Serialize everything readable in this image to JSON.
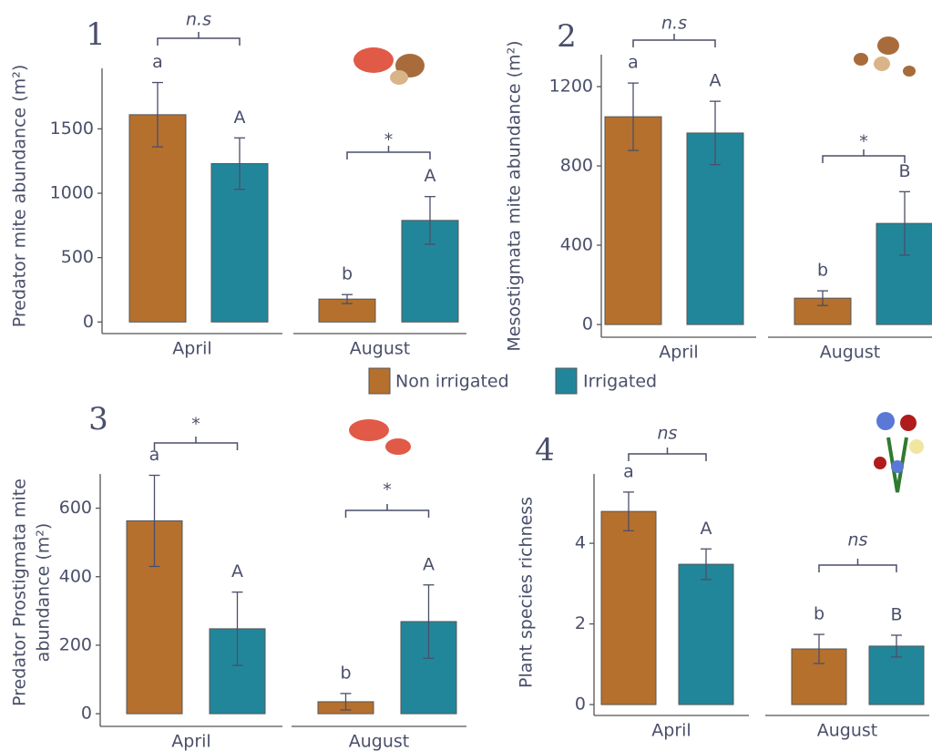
{
  "legend": [
    {
      "name": "Non irrigated",
      "color": "#b5702e"
    },
    {
      "name": "Irrigated",
      "color": "#22869a"
    }
  ],
  "chart_data": [
    {
      "type": "bar",
      "panel": "1",
      "ylabel": "Predator mite abundance (m²)",
      "categories": [
        "April",
        "August"
      ],
      "series": [
        {
          "values": [
            1610,
            178
          ],
          "errors": [
            250,
            35
          ],
          "letters": [
            "a",
            "b"
          ]
        },
        {
          "values": [
            1230,
            789
          ],
          "errors": [
            200,
            185
          ],
          "letters": [
            "A",
            "A"
          ]
        }
      ],
      "significance": [
        "n.s",
        "*"
      ],
      "ylim": [
        -90,
        1970
      ],
      "yticks": [
        0,
        500,
        1000,
        1500
      ]
    },
    {
      "type": "bar",
      "panel": "2",
      "ylabel": "Mesostigmata mite abundance (m²)",
      "categories": [
        "April",
        "August"
      ],
      "series": [
        {
          "values": [
            1048,
            133
          ],
          "errors": [
            170,
            37
          ],
          "letters": [
            "a",
            "b"
          ]
        },
        {
          "values": [
            966,
            510
          ],
          "errors": [
            160,
            160
          ],
          "letters": [
            "A",
            "B"
          ]
        }
      ],
      "significance": [
        "n.s",
        "*"
      ],
      "ylim": [
        -64,
        1361
      ],
      "yticks": [
        0,
        400,
        800,
        1200
      ]
    },
    {
      "type": "bar",
      "panel": "3",
      "ylabel": [
        "Predator Prostigmata mite",
        "abundance (m²)"
      ],
      "categories": [
        "April",
        "August"
      ],
      "series": [
        {
          "values": [
            563,
            35
          ],
          "errors": [
            133,
            24
          ],
          "letters": [
            "a",
            "b"
          ]
        },
        {
          "values": [
            248,
            269
          ],
          "errors": [
            107,
            107
          ],
          "letters": [
            "A",
            "A"
          ]
        }
      ],
      "significance": [
        "*",
        "*"
      ],
      "ylim": [
        -37,
        700
      ],
      "yticks": [
        0,
        200,
        400,
        600
      ]
    },
    {
      "type": "bar",
      "panel": "4",
      "ylabel": "Plant species richness",
      "categories": [
        "April",
        "August"
      ],
      "series": [
        {
          "values": [
            4.79,
            1.38
          ],
          "errors": [
            0.48,
            0.36
          ],
          "letters": [
            "a",
            "b"
          ]
        },
        {
          "values": [
            3.48,
            1.45
          ],
          "errors": [
            0.38,
            0.27
          ],
          "letters": [
            "A",
            "B"
          ]
        }
      ],
      "significance": [
        "ns",
        "ns"
      ],
      "ylim": [
        -0.27,
        5.72
      ],
      "yticks": [
        0,
        2,
        4
      ]
    }
  ]
}
